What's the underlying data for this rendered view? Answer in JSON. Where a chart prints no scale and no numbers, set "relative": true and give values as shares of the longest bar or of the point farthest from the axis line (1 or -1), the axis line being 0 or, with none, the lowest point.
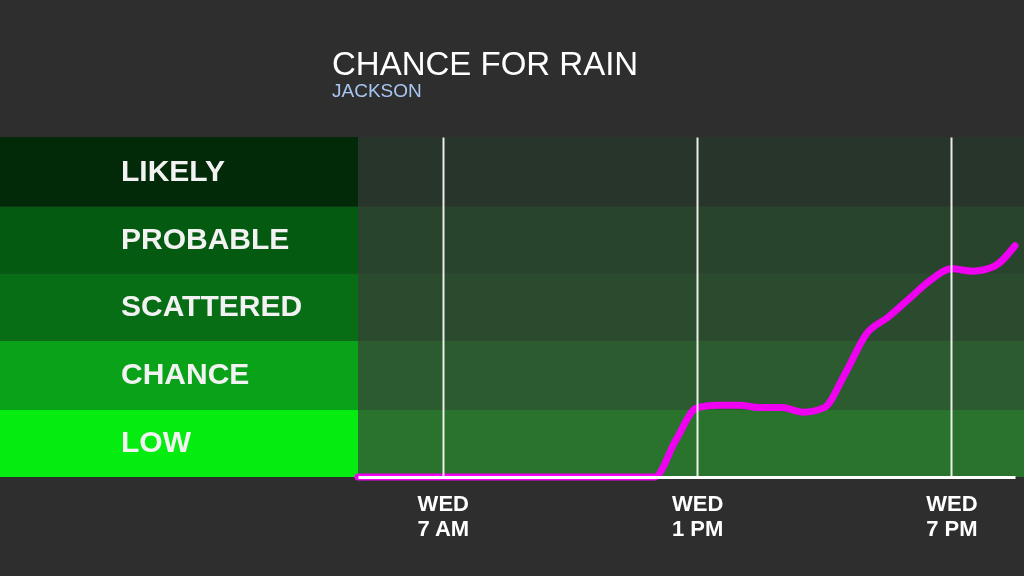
{
  "chart_data": {
    "type": "line",
    "title": "CHANCE FOR RAIN",
    "subtitle": "JACKSON",
    "relative": true,
    "categories": [
      null,
      null,
      null,
      null,
      "WED 7 AM",
      null,
      null,
      null,
      null,
      null,
      null,
      null,
      null,
      null,
      null,
      null,
      "WED 1 PM",
      null,
      null,
      null,
      null,
      null,
      null,
      null,
      null,
      null,
      null,
      null,
      "WED 7 PM",
      null,
      null,
      null
    ],
    "series": [
      {
        "color": "#f000f0",
        "values": [
          0,
          0,
          0,
          0,
          0,
          0,
          0,
          0,
          0,
          0,
          0,
          0,
          0,
          0,
          0,
          0.16,
          0.3,
          0.31,
          0.31,
          0.3,
          0.3,
          0.28,
          0.3,
          0.45,
          0.62,
          0.69,
          0.77,
          0.85,
          0.9,
          0.89,
          0.91,
          1.0
        ]
      }
    ],
    "bands": [
      {
        "axis": "y",
        "from": 0,
        "to": 0.29,
        "label": "LOW",
        "color": "#04ec10"
      },
      {
        "axis": "y",
        "from": 0.29,
        "to": 0.59,
        "label": "CHANCE",
        "color": "#0aa218"
      },
      {
        "axis": "y",
        "from": 0.59,
        "to": 0.88,
        "label": "SCATTERED",
        "color": "#086e16"
      },
      {
        "axis": "y",
        "from": 0.88,
        "to": 1.17,
        "label": "PROBABLE",
        "color": "#055a12"
      },
      {
        "axis": "y",
        "from": 1.17,
        "to": 1.47,
        "label": "LIKELY",
        "color": "#032a08"
      }
    ],
    "grid": "x",
    "line_style": "solid"
  }
}
